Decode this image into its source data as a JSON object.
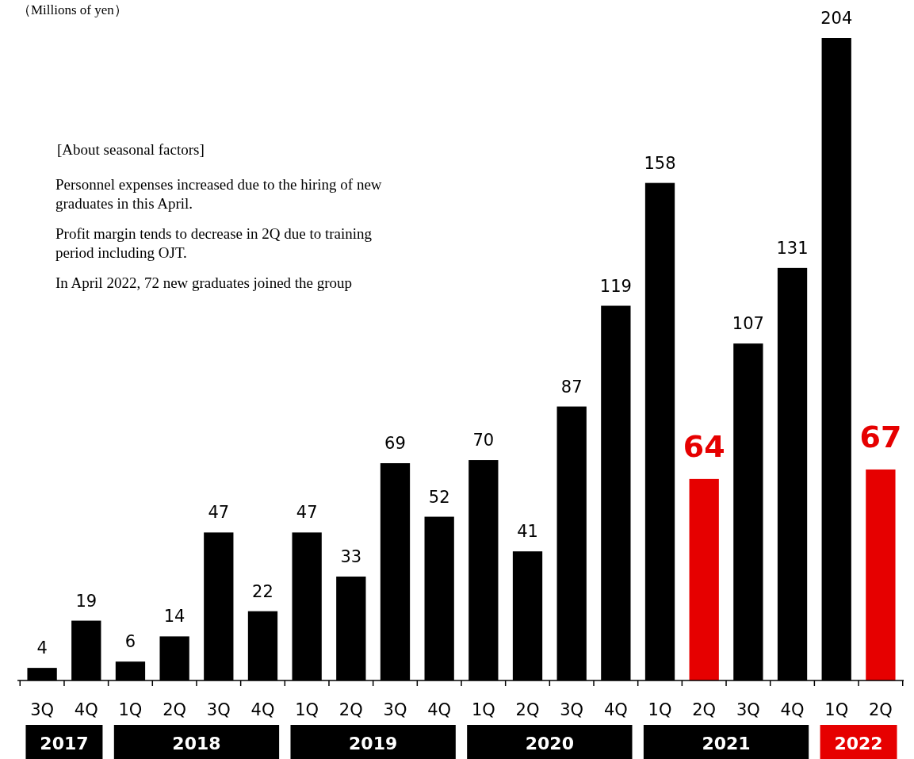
{
  "chart_data": {
    "type": "bar",
    "ylabel": "（Millions of yen）",
    "categories": [
      "3Q",
      "4Q",
      "1Q",
      "2Q",
      "3Q",
      "4Q",
      "1Q",
      "2Q",
      "3Q",
      "4Q",
      "1Q",
      "2Q",
      "3Q",
      "4Q",
      "1Q",
      "2Q",
      "3Q",
      "4Q",
      "1Q",
      "2Q"
    ],
    "values": [
      4,
      19,
      6,
      14,
      47,
      22,
      47,
      33,
      69,
      52,
      70,
      41,
      87,
      119,
      158,
      64,
      107,
      131,
      204,
      67
    ],
    "color": "#000000",
    "colors": [
      "#000000",
      "#000000",
      "#000000",
      "#000000",
      "#000000",
      "#000000",
      "#000000",
      "#000000",
      "#000000",
      "#000000",
      "#000000",
      "#000000",
      "#000000",
      "#000000",
      "#000000",
      "#e60000",
      "#000000",
      "#000000",
      "#000000",
      "#e60000"
    ],
    "data_labels": true,
    "annotations": [
      "[About seasonal factors]",
      "Personnel expenses increased due to the hiring of new graduates in this April.",
      "Profit margin tends to decrease in 2Q due to training period including OJT.",
      "In April 2022, 72 new graduates joined the group",
      "2017",
      "2018",
      "2019",
      "2020",
      "2021",
      "2022"
    ]
  }
}
